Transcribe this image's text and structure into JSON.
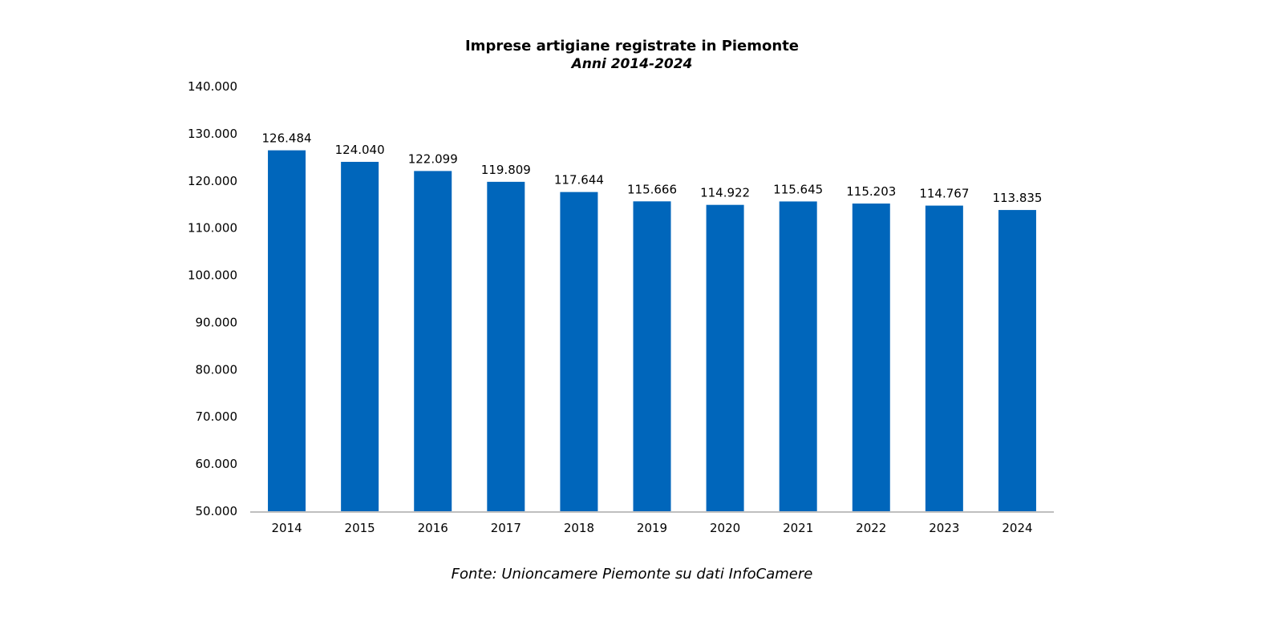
{
  "chart_data": {
    "type": "bar",
    "title": "Imprese artigiane registrate in Piemonte",
    "subtitle": "Anni 2014-2024",
    "categories": [
      "2014",
      "2015",
      "2016",
      "2017",
      "2018",
      "2019",
      "2020",
      "2021",
      "2022",
      "2023",
      "2024"
    ],
    "values": [
      126484,
      124040,
      122099,
      119809,
      117644,
      115666,
      114922,
      115645,
      115203,
      114767,
      113835
    ],
    "value_labels": [
      "126.484",
      "124.040",
      "122.099",
      "119.809",
      "117.644",
      "115.666",
      "114.922",
      "115.645",
      "115.203",
      "114.767",
      "113.835"
    ],
    "ylim": [
      50000,
      140000
    ],
    "y_ticks": [
      50000,
      60000,
      70000,
      80000,
      90000,
      100000,
      110000,
      120000,
      130000,
      140000
    ],
    "y_tick_labels": [
      "50.000",
      "60.000",
      "70.000",
      "80.000",
      "90.000",
      "100.000",
      "110.000",
      "120.000",
      "130.000",
      "140.000"
    ],
    "xlabel": "",
    "ylabel": "",
    "grid": false,
    "legend": "none",
    "bar_color": "#0066BB",
    "axis_color": "#BFBFBF"
  },
  "source": "Fonte: Unioncamere Piemonte su dati InfoCamere"
}
